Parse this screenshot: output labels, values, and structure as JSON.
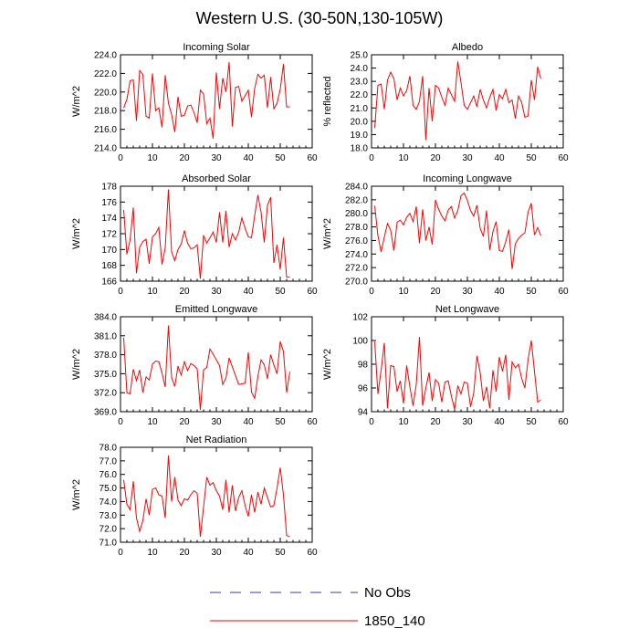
{
  "figure": {
    "title": "Western U.S. (30-50N,130-105W)",
    "legend": [
      {
        "label": "No Obs",
        "color": "#3a3aa8",
        "dash": true
      },
      {
        "label": "1850_140",
        "color": "#ff0000",
        "dash": false
      }
    ]
  },
  "chart_data": [
    {
      "type": "line",
      "title": "Incoming Solar",
      "xlabel": "",
      "ylabel": "W/m^2",
      "xlim": [
        0,
        60
      ],
      "ylim": [
        214,
        224
      ],
      "xticks": [
        0,
        10,
        20,
        30,
        40,
        50,
        60
      ],
      "yticks": [
        214,
        216,
        218,
        220,
        222,
        224
      ],
      "ydecimals": 1,
      "series": [
        {
          "color": "#ff0000",
          "x": [
            1,
            2,
            3,
            4,
            5,
            6,
            7,
            8,
            9,
            10,
            11,
            12,
            13,
            14,
            15,
            16,
            17,
            18,
            19,
            20,
            21,
            22,
            23,
            24,
            25,
            26,
            27,
            28,
            29,
            30,
            31,
            32,
            33,
            34,
            35,
            36,
            37,
            38,
            39,
            40,
            41,
            42,
            43,
            44,
            45,
            46,
            47,
            48,
            49,
            50,
            51,
            52,
            53
          ],
          "y": [
            218.3,
            219.2,
            221.2,
            221.3,
            216.9,
            222.3,
            221.9,
            217.4,
            217.2,
            222.0,
            218.0,
            218.3,
            216.2,
            221.8,
            218.8,
            217.6,
            215.7,
            219.5,
            217.4,
            217.5,
            218.5,
            218.6,
            217.8,
            216.7,
            220.2,
            219.8,
            216.6,
            217.2,
            215.0,
            222.1,
            218.2,
            221.5,
            220.0,
            223.2,
            216.3,
            220.5,
            220.6,
            219.0,
            219.6,
            220.2,
            217.3,
            220.4,
            221.9,
            221.5,
            221.8,
            218.3,
            221.6,
            218.2,
            218.8,
            220.3,
            223.0,
            218.4,
            218.4
          ]
        }
      ]
    },
    {
      "type": "line",
      "title": "Albedo",
      "xlabel": "",
      "ylabel": "% reflected",
      "xlim": [
        0,
        60
      ],
      "ylim": [
        18,
        25
      ],
      "xticks": [
        0,
        10,
        20,
        30,
        40,
        50,
        60
      ],
      "yticks": [
        18,
        19,
        20,
        21,
        22,
        23,
        24,
        25
      ],
      "ydecimals": 1,
      "series": [
        {
          "color": "#ff0000",
          "x": [
            1,
            2,
            3,
            4,
            5,
            6,
            7,
            8,
            9,
            10,
            11,
            12,
            13,
            14,
            15,
            16,
            17,
            18,
            19,
            20,
            21,
            22,
            23,
            24,
            25,
            26,
            27,
            28,
            29,
            30,
            31,
            32,
            33,
            34,
            35,
            36,
            37,
            38,
            39,
            40,
            41,
            42,
            43,
            44,
            45,
            46,
            47,
            48,
            49,
            50,
            51,
            52,
            53
          ],
          "y": [
            19.5,
            22.7,
            22.8,
            20.9,
            23.1,
            23.7,
            23.2,
            21.6,
            22.5,
            21.9,
            22.3,
            23.4,
            21.2,
            20.9,
            21.5,
            23.4,
            18.6,
            22.5,
            20.0,
            22.7,
            22.5,
            21.8,
            21.2,
            22.5,
            22.0,
            21.5,
            24.5,
            22.9,
            21.2,
            20.9,
            21.4,
            21.9,
            21.1,
            22.4,
            21.6,
            21.0,
            21.8,
            22.4,
            20.8,
            22.0,
            21.7,
            22.4,
            21.4,
            21.6,
            20.2,
            21.9,
            21.4,
            20.3,
            20.4,
            23.1,
            21.6,
            24.1,
            23.2
          ]
        }
      ]
    },
    {
      "type": "line",
      "title": "Absorbed Solar",
      "xlabel": "",
      "ylabel": "W/m^2",
      "xlim": [
        0,
        60
      ],
      "ylim": [
        166,
        178
      ],
      "xticks": [
        0,
        10,
        20,
        30,
        40,
        50,
        60
      ],
      "yticks": [
        166,
        168,
        170,
        172,
        174,
        176,
        178
      ],
      "ydecimals": 0,
      "series": [
        {
          "color": "#ff0000",
          "x": [
            1,
            2,
            3,
            4,
            5,
            6,
            7,
            8,
            9,
            10,
            11,
            12,
            13,
            14,
            15,
            16,
            17,
            18,
            19,
            20,
            21,
            22,
            23,
            24,
            25,
            26,
            27,
            28,
            29,
            30,
            31,
            32,
            33,
            34,
            35,
            36,
            37,
            38,
            39,
            40,
            41,
            42,
            43,
            44,
            45,
            46,
            47,
            48,
            49,
            50,
            51,
            52,
            53
          ],
          "y": [
            175.0,
            169.4,
            171.2,
            175.3,
            167.0,
            170.3,
            171.0,
            171.3,
            168.2,
            171.6,
            172.0,
            172.8,
            168.1,
            170.2,
            177.6,
            169.7,
            168.6,
            170.0,
            170.7,
            172.4,
            170.8,
            170.1,
            170.2,
            170.6,
            166.3,
            171.8,
            170.8,
            171.5,
            172.2,
            170.9,
            174.7,
            170.9,
            174.9,
            170.3,
            172.0,
            171.2,
            172.2,
            174.0,
            172.7,
            171.6,
            171.5,
            174.3,
            176.9,
            174.7,
            170.9,
            175.6,
            176.6,
            168.3,
            170.6,
            167.5,
            171.5,
            166.5,
            166.5
          ]
        }
      ]
    },
    {
      "type": "line",
      "title": "Incoming Longwave",
      "xlabel": "",
      "ylabel": "W/m^2",
      "xlim": [
        0,
        60
      ],
      "ylim": [
        270,
        284
      ],
      "xticks": [
        0,
        10,
        20,
        30,
        40,
        50,
        60
      ],
      "yticks": [
        270,
        272,
        274,
        276,
        278,
        280,
        282,
        284
      ],
      "ydecimals": 1,
      "series": [
        {
          "color": "#ff0000",
          "x": [
            1,
            2,
            3,
            4,
            5,
            6,
            7,
            8,
            9,
            10,
            11,
            12,
            13,
            14,
            15,
            16,
            17,
            18,
            19,
            20,
            21,
            22,
            23,
            24,
            25,
            26,
            27,
            28,
            29,
            30,
            31,
            32,
            33,
            34,
            35,
            36,
            37,
            38,
            39,
            40,
            41,
            42,
            43,
            44,
            45,
            46,
            47,
            48,
            49,
            50,
            51,
            52,
            53
          ],
          "y": [
            281.1,
            276.7,
            274.3,
            276.5,
            278.5,
            277.5,
            274.5,
            278.7,
            279.0,
            278.3,
            279.4,
            280.0,
            278.8,
            281.0,
            275.6,
            280.6,
            276.0,
            278.0,
            275.4,
            282.0,
            280.6,
            279.6,
            278.9,
            280.5,
            281.0,
            279.3,
            280.4,
            282.6,
            283.0,
            281.9,
            280.4,
            279.6,
            281.2,
            277.8,
            276.6,
            280.4,
            274.6,
            277.3,
            278.8,
            274.5,
            274.4,
            275.8,
            277.6,
            271.8,
            275.5,
            276.3,
            276.8,
            277.1,
            280.2,
            281.5,
            276.8,
            277.9,
            276.7
          ]
        }
      ]
    },
    {
      "type": "line",
      "title": "Emitted Longwave",
      "xlabel": "",
      "ylabel": "W/m^2",
      "xlim": [
        0,
        60
      ],
      "ylim": [
        369,
        384
      ],
      "xticks": [
        0,
        10,
        20,
        30,
        40,
        50,
        60
      ],
      "yticks": [
        369,
        372,
        375,
        378,
        381,
        384
      ],
      "ydecimals": 1,
      "series": [
        {
          "color": "#ff0000",
          "x": [
            1,
            2,
            3,
            4,
            5,
            6,
            7,
            8,
            9,
            10,
            11,
            12,
            13,
            14,
            15,
            16,
            17,
            18,
            19,
            20,
            21,
            22,
            23,
            24,
            25,
            26,
            27,
            28,
            29,
            30,
            31,
            32,
            33,
            34,
            35,
            36,
            37,
            38,
            39,
            40,
            41,
            42,
            43,
            44,
            45,
            46,
            47,
            48,
            49,
            50,
            51,
            52,
            53
          ],
          "y": [
            380.7,
            372.0,
            371.8,
            375.7,
            373.9,
            375.6,
            372.0,
            374.5,
            374.0,
            376.5,
            377.0,
            376.9,
            375.1,
            372.9,
            382.6,
            374.4,
            373.0,
            376.2,
            374.8,
            376.9,
            375.5,
            376.6,
            376.3,
            375.8,
            369.3,
            375.6,
            376.0,
            378.9,
            378.1,
            377.2,
            376.3,
            373.3,
            374.3,
            377.5,
            376.1,
            374.7,
            373.3,
            373.4,
            373.5,
            378.4,
            372.1,
            371.1,
            374.6,
            377.2,
            376.4,
            374.2,
            378.0,
            376.4,
            375.0,
            380.1,
            378.5,
            372.0,
            375.3
          ]
        }
      ]
    },
    {
      "type": "line",
      "title": "Net Longwave",
      "xlabel": "",
      "ylabel": "W/m^2",
      "xlim": [
        0,
        60
      ],
      "ylim": [
        94,
        102
      ],
      "xticks": [
        0,
        10,
        20,
        30,
        40,
        50,
        60
      ],
      "yticks": [
        94,
        96,
        98,
        100,
        102
      ],
      "ydecimals": 0,
      "series": [
        {
          "color": "#ff0000",
          "x": [
            1,
            2,
            3,
            4,
            5,
            6,
            7,
            8,
            9,
            10,
            11,
            12,
            13,
            14,
            15,
            16,
            17,
            18,
            19,
            20,
            21,
            22,
            23,
            24,
            25,
            26,
            27,
            28,
            29,
            30,
            31,
            32,
            33,
            34,
            35,
            36,
            37,
            38,
            39,
            40,
            41,
            42,
            43,
            44,
            45,
            46,
            47,
            48,
            49,
            50,
            51,
            52,
            53
          ],
          "y": [
            99.9,
            95.5,
            97.5,
            99.8,
            94.3,
            97.9,
            97.8,
            95.7,
            96.6,
            94.7,
            97.9,
            96.1,
            94.5,
            96.3,
            100.3,
            94.5,
            96.0,
            97.3,
            94.9,
            96.7,
            96.4,
            94.8,
            96.5,
            96.6,
            95.3,
            94.2,
            96.2,
            95.5,
            96.5,
            96.4,
            94.4,
            95.6,
            98.7,
            97.3,
            94.9,
            96.1,
            94.3,
            97.5,
            95.7,
            98.6,
            97.4,
            98.8,
            95.0,
            98.2,
            97.7,
            98.0,
            96.8,
            96.0,
            98.4,
            100.0,
            97.4,
            94.8,
            95.0
          ]
        }
      ]
    },
    {
      "type": "line",
      "title": "Net Radiation",
      "xlabel": "",
      "ylabel": "W/m^2",
      "xlim": [
        0,
        60
      ],
      "ylim": [
        71,
        78
      ],
      "xticks": [
        0,
        10,
        20,
        30,
        40,
        50,
        60
      ],
      "yticks": [
        71,
        72,
        73,
        74,
        75,
        76,
        77,
        78
      ],
      "ydecimals": 1,
      "series": [
        {
          "color": "#ff0000",
          "x": [
            1,
            2,
            3,
            4,
            5,
            6,
            7,
            8,
            9,
            10,
            11,
            12,
            13,
            14,
            15,
            16,
            17,
            18,
            19,
            20,
            21,
            22,
            23,
            24,
            25,
            26,
            27,
            28,
            29,
            30,
            31,
            32,
            33,
            34,
            35,
            36,
            37,
            38,
            39,
            40,
            41,
            42,
            43,
            44,
            45,
            46,
            47,
            48,
            49,
            50,
            51,
            52,
            53
          ],
          "y": [
            75.6,
            73.8,
            73.4,
            75.5,
            72.8,
            71.8,
            72.6,
            74.2,
            73.0,
            74.9,
            75.0,
            74.5,
            74.4,
            72.8,
            77.4,
            74.0,
            75.8,
            74.1,
            73.7,
            74.2,
            74.1,
            74.5,
            74.8,
            74.6,
            71.4,
            73.6,
            75.8,
            75.2,
            75.4,
            74.8,
            74.4,
            73.4,
            75.6,
            73.2,
            75.2,
            73.3,
            74.3,
            74.8,
            73.7,
            72.9,
            74.5,
            73.2,
            74.7,
            73.8,
            75.0,
            74.3,
            73.6,
            73.7,
            75.0,
            76.5,
            74.5,
            71.5,
            71.4
          ]
        }
      ]
    }
  ]
}
